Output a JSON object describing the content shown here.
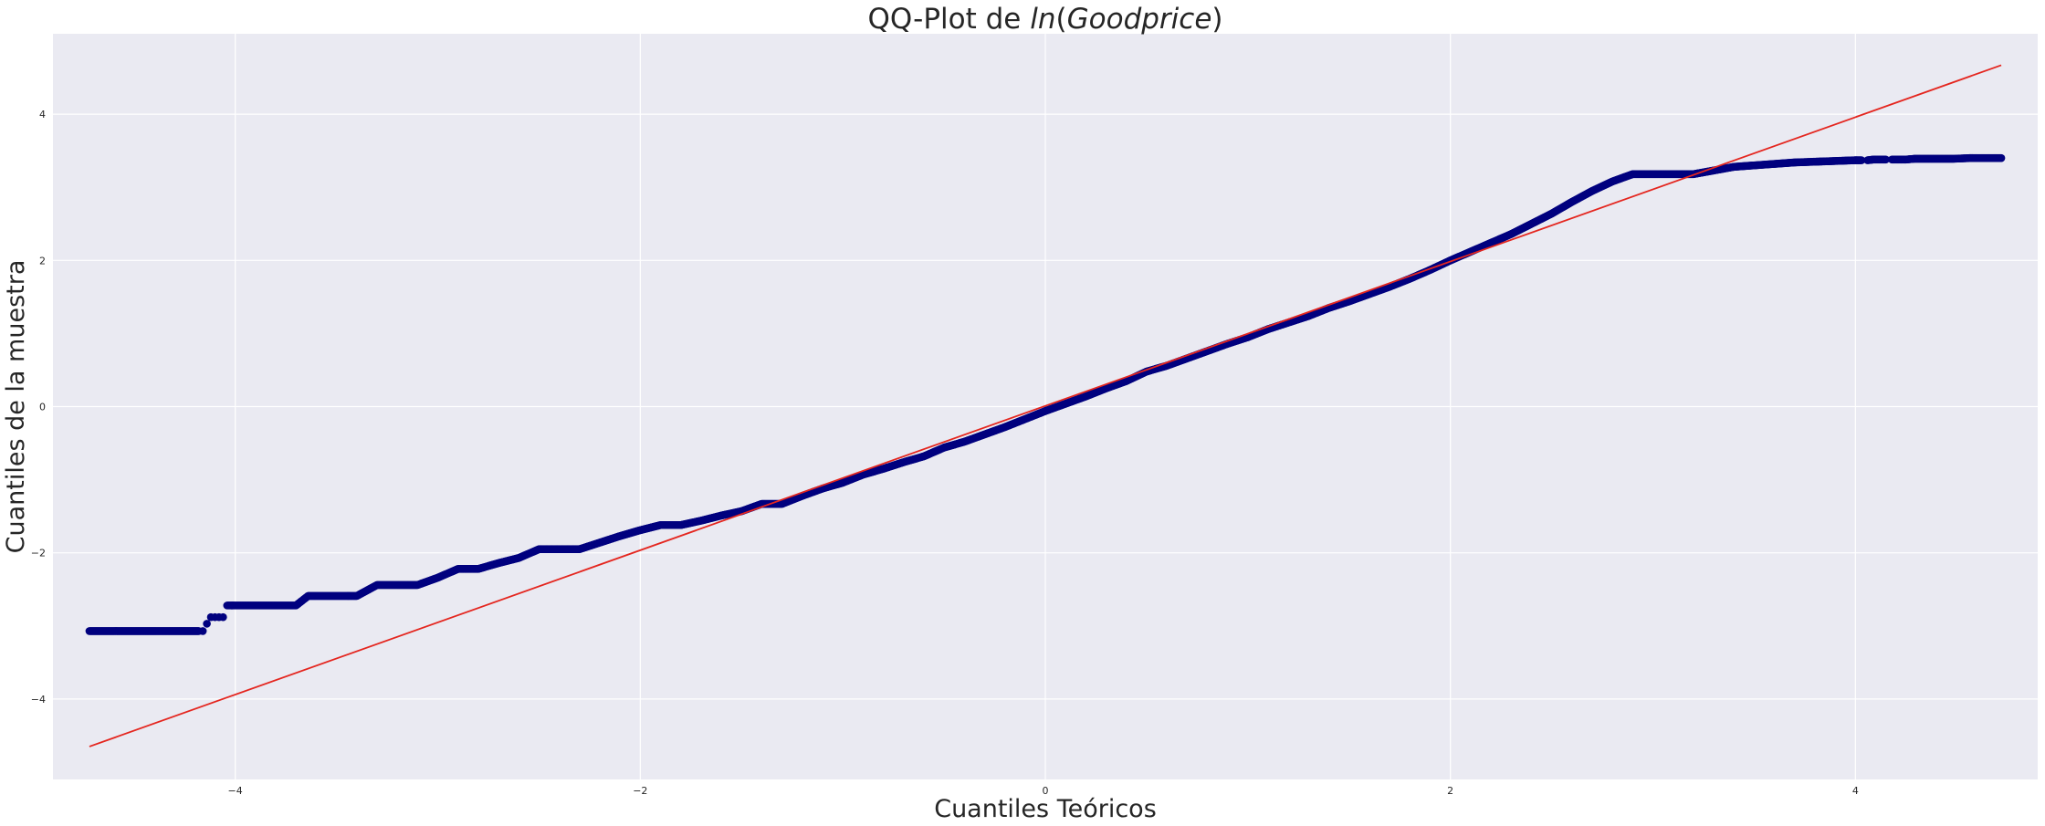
{
  "chart_data": {
    "type": "scatter",
    "title_prefix": "QQ-Plot de ",
    "title_math": {
      "func": "ln",
      "open": "(",
      "arg": "Goodprice",
      "close": ")"
    },
    "xlabel": "Cuantiles Teóricos",
    "ylabel": "Cuantiles de la muestra",
    "xlim": [
      -4.9,
      4.9
    ],
    "ylim": [
      -5.1,
      5.1
    ],
    "xticks": [
      -4,
      -2,
      0,
      2,
      4
    ],
    "yticks": [
      -4,
      -2,
      0,
      2,
      4
    ],
    "xtick_labels": [
      "−4",
      "−2",
      "0",
      "2",
      "4"
    ],
    "ytick_labels": [
      "−4",
      "−2",
      "0",
      "2",
      "4"
    ],
    "grid": true,
    "colors": {
      "background": "#eaeaf2",
      "grid": "#ffffff",
      "points": "#00007f",
      "fit_line": "#e4261f"
    },
    "fit_line": {
      "x": [
        -4.72,
        4.72
      ],
      "y": [
        -4.65,
        4.67
      ]
    },
    "series": [
      {
        "x": [
          -4.72,
          -4.57,
          -4.47,
          -4.39,
          -4.33,
          -4.28,
          -4.24,
          -4.21,
          -4.18,
          -4.16,
          -4.14,
          -4.12,
          -4.1,
          -4.08,
          -4.06,
          -4.04,
          -4.0,
          -3.9,
          -3.8,
          -3.7,
          -3.64,
          -3.6,
          -3.5,
          -3.4,
          -3.3,
          -3.2,
          -3.1,
          -3.0,
          -2.9,
          -2.8,
          -2.7,
          -2.6,
          -2.5,
          -2.4,
          -2.3,
          -2.2,
          -2.1,
          -2.0,
          -1.9,
          -1.8,
          -1.7,
          -1.6,
          -1.5,
          -1.4,
          -1.3,
          -1.2,
          -1.1,
          -1.0,
          -0.9,
          -0.8,
          -0.7,
          -0.6,
          -0.5,
          -0.4,
          -0.3,
          -0.2,
          -0.1,
          0.0,
          0.1,
          0.2,
          0.3,
          0.4,
          0.5,
          0.6,
          0.7,
          0.8,
          0.9,
          1.0,
          1.1,
          1.2,
          1.3,
          1.4,
          1.5,
          1.6,
          1.7,
          1.8,
          1.9,
          2.0,
          2.1,
          2.2,
          2.3,
          2.4,
          2.5,
          2.6,
          2.7,
          2.8,
          2.9,
          3.0,
          3.1,
          3.2,
          3.3,
          3.4,
          3.5,
          3.6,
          3.7,
          3.8,
          3.9,
          4.0,
          4.03,
          4.06,
          4.09,
          4.12,
          4.15,
          4.18,
          4.21,
          4.25,
          4.29,
          4.34,
          4.4,
          4.48,
          4.57,
          4.72
        ],
        "y": [
          -3.07,
          -3.07,
          -3.07,
          -3.07,
          -3.07,
          -3.07,
          -3.07,
          -3.07,
          -3.07,
          -3.07,
          -2.97,
          -2.88,
          -2.88,
          -2.88,
          -2.88,
          -2.72,
          -2.72,
          -2.72,
          -2.72,
          -2.72,
          -2.59,
          -2.59,
          -2.59,
          -2.59,
          -2.44,
          -2.44,
          -2.44,
          -2.34,
          -2.22,
          -2.22,
          -2.14,
          -2.07,
          -1.95,
          -1.95,
          -1.95,
          -1.86,
          -1.77,
          -1.69,
          -1.62,
          -1.62,
          -1.56,
          -1.49,
          -1.43,
          -1.33,
          -1.33,
          -1.22,
          -1.12,
          -1.04,
          -0.93,
          -0.85,
          -0.76,
          -0.68,
          -0.56,
          -0.48,
          -0.38,
          -0.28,
          -0.17,
          -0.06,
          0.04,
          0.14,
          0.25,
          0.35,
          0.48,
          0.56,
          0.66,
          0.76,
          0.86,
          0.95,
          1.06,
          1.15,
          1.24,
          1.35,
          1.44,
          1.54,
          1.64,
          1.75,
          1.87,
          2.0,
          2.12,
          2.24,
          2.36,
          2.5,
          2.64,
          2.8,
          2.95,
          3.08,
          3.18,
          3.18,
          3.18,
          3.18,
          3.23,
          3.28,
          3.3,
          3.32,
          3.34,
          3.35,
          3.36,
          3.37,
          3.37,
          3.37,
          3.38,
          3.38,
          3.38,
          3.38,
          3.38,
          3.38,
          3.39,
          3.39,
          3.39,
          3.39,
          3.4,
          3.4
        ]
      }
    ]
  }
}
